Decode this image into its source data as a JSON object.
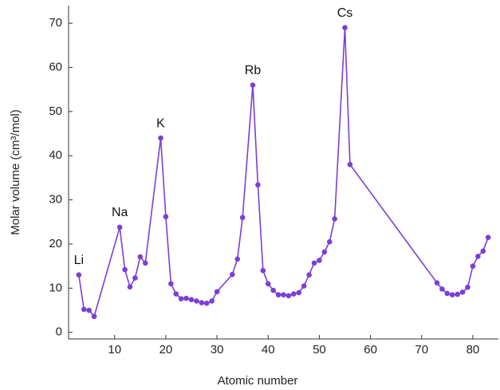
{
  "chart_data": {
    "type": "line",
    "xlabel": "Atomic number",
    "ylabel": "Molar volume (cm³/mol)",
    "x": [
      3,
      4,
      5,
      6,
      11,
      12,
      13,
      14,
      15,
      16,
      19,
      20,
      21,
      22,
      23,
      24,
      25,
      26,
      27,
      28,
      29,
      30,
      33,
      34,
      35,
      37,
      38,
      39,
      40,
      41,
      42,
      43,
      44,
      45,
      46,
      47,
      48,
      49,
      50,
      51,
      52,
      53,
      55,
      56,
      73,
      74,
      75,
      76,
      77,
      78,
      79,
      80,
      81,
      82,
      83
    ],
    "series": [
      {
        "name": "Molar volume",
        "color": "#7b3fd6",
        "values": [
          13.0,
          5.2,
          5.0,
          3.6,
          23.8,
          14.2,
          10.3,
          12.3,
          17.1,
          15.7,
          44.0,
          26.2,
          11.0,
          8.7,
          7.6,
          7.7,
          7.4,
          7.1,
          6.7,
          6.6,
          7.1,
          9.2,
          13.1,
          16.6,
          26.0,
          56.0,
          33.4,
          14.0,
          11.0,
          9.5,
          8.5,
          8.5,
          8.3,
          8.7,
          9.0,
          10.5,
          13.0,
          15.7,
          16.3,
          18.2,
          20.5,
          25.7,
          69.0,
          38.0,
          11.2,
          9.8,
          8.8,
          8.5,
          8.6,
          9.1,
          10.2,
          15.0,
          17.2,
          18.4,
          21.5
        ]
      }
    ],
    "annotations": [
      {
        "text": "Li",
        "x": 3
      },
      {
        "text": "Na",
        "x": 11
      },
      {
        "text": "K",
        "x": 19
      },
      {
        "text": "Rb",
        "x": 37
      },
      {
        "text": "Cs",
        "x": 55
      }
    ],
    "xlim": [
      1,
      85
    ],
    "xticks": [
      10,
      20,
      30,
      40,
      50,
      60,
      70,
      80
    ],
    "ylim": [
      -1.5,
      74
    ],
    "yticks": [
      0,
      10,
      20,
      30,
      40,
      50,
      60,
      70
    ],
    "grid": false
  }
}
